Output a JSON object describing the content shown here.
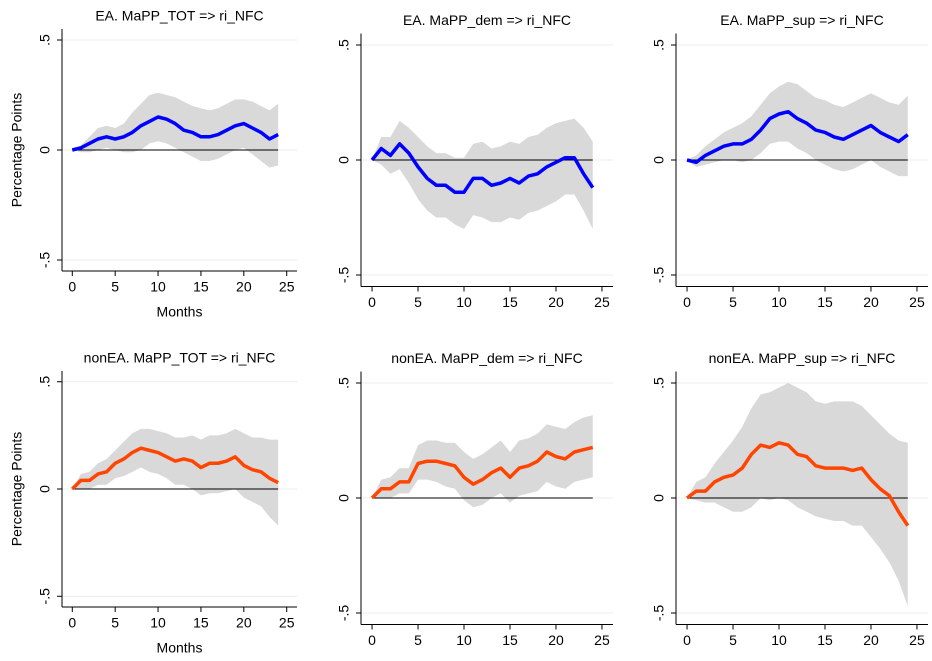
{
  "chart_data": [
    {
      "type": "line",
      "title": "EA. MaPP_TOT => ri_NFC",
      "ylabel": "Percentage Points",
      "xlabel": "Months",
      "color": "#0000ff",
      "band_color": "#d9d9d9",
      "x": [
        0,
        1,
        2,
        3,
        4,
        5,
        6,
        7,
        8,
        9,
        10,
        11,
        12,
        13,
        14,
        15,
        16,
        17,
        18,
        19,
        20,
        21,
        22,
        23,
        24
      ],
      "values": [
        0,
        0.01,
        0.03,
        0.05,
        0.06,
        0.05,
        0.06,
        0.08,
        0.11,
        0.13,
        0.15,
        0.14,
        0.12,
        0.09,
        0.08,
        0.06,
        0.06,
        0.07,
        0.09,
        0.11,
        0.12,
        0.1,
        0.08,
        0.05,
        0.07
      ],
      "lower": [
        0,
        -0.01,
        -0.01,
        0,
        0.01,
        0,
        -0.01,
        -0.01,
        0,
        0.03,
        0.04,
        0.03,
        0.01,
        -0.01,
        -0.03,
        -0.05,
        -0.05,
        -0.04,
        -0.02,
        0,
        0.01,
        -0.02,
        -0.05,
        -0.08,
        -0.07
      ],
      "upper": [
        0,
        0.02,
        0.06,
        0.1,
        0.11,
        0.1,
        0.12,
        0.17,
        0.21,
        0.25,
        0.26,
        0.25,
        0.24,
        0.22,
        0.2,
        0.19,
        0.18,
        0.19,
        0.21,
        0.23,
        0.23,
        0.22,
        0.2,
        0.18,
        0.21
      ],
      "xlim": [
        -1.2,
        26.2
      ],
      "ylim": [
        -0.55,
        0.55
      ],
      "xticks": [
        0,
        5,
        10,
        15,
        20,
        25
      ],
      "yticks": [
        {
          "value": -0.5,
          "label": "-.5"
        },
        0,
        {
          "value": 0.5,
          "label": ".5"
        }
      ],
      "grid": true
    },
    {
      "type": "line",
      "title": "EA. MaPP_dem => ri_NFC",
      "color": "#0000ff",
      "band_color": "#d9d9d9",
      "x": [
        0,
        1,
        2,
        3,
        4,
        5,
        6,
        7,
        8,
        9,
        10,
        11,
        12,
        13,
        14,
        15,
        16,
        17,
        18,
        19,
        20,
        21,
        22,
        23,
        24
      ],
      "values": [
        0,
        0.05,
        0.02,
        0.07,
        0.03,
        -0.03,
        -0.08,
        -0.11,
        -0.11,
        -0.14,
        -0.14,
        -0.08,
        -0.08,
        -0.11,
        -0.1,
        -0.08,
        -0.1,
        -0.07,
        -0.06,
        -0.03,
        -0.01,
        0.01,
        0.01,
        -0.06,
        -0.12
      ],
      "lower": [
        0,
        -0.02,
        -0.06,
        -0.04,
        -0.1,
        -0.17,
        -0.22,
        -0.25,
        -0.25,
        -0.28,
        -0.3,
        -0.24,
        -0.25,
        -0.27,
        -0.27,
        -0.25,
        -0.26,
        -0.23,
        -0.22,
        -0.2,
        -0.18,
        -0.15,
        -0.15,
        -0.22,
        -0.3
      ],
      "upper": [
        0,
        0.1,
        0.1,
        0.17,
        0.14,
        0.1,
        0.06,
        0.03,
        0.03,
        0.01,
        0.01,
        0.07,
        0.08,
        0.05,
        0.06,
        0.08,
        0.07,
        0.1,
        0.11,
        0.14,
        0.16,
        0.17,
        0.18,
        0.14,
        0.08
      ],
      "xlim": [
        -1.2,
        26.2
      ],
      "ylim": [
        -0.55,
        0.55
      ],
      "xticks": [
        0,
        5,
        10,
        15,
        20,
        25
      ],
      "yticks": [
        {
          "value": -0.5,
          "label": "-.5"
        },
        0,
        {
          "value": 0.5,
          "label": ".5"
        }
      ],
      "grid": true
    },
    {
      "type": "line",
      "title": "EA. MaPP_sup => ri_NFC",
      "color": "#0000ff",
      "band_color": "#d9d9d9",
      "x": [
        0,
        1,
        2,
        3,
        4,
        5,
        6,
        7,
        8,
        9,
        10,
        11,
        12,
        13,
        14,
        15,
        16,
        17,
        18,
        19,
        20,
        21,
        22,
        23,
        24
      ],
      "values": [
        0,
        -0.01,
        0.02,
        0.04,
        0.06,
        0.07,
        0.07,
        0.09,
        0.13,
        0.18,
        0.2,
        0.21,
        0.18,
        0.16,
        0.13,
        0.12,
        0.1,
        0.09,
        0.11,
        0.13,
        0.15,
        0.12,
        0.1,
        0.08,
        0.11
      ],
      "lower": [
        0,
        -0.03,
        -0.02,
        -0.01,
        0,
        0,
        -0.01,
        0,
        0.03,
        0.07,
        0.08,
        0.08,
        0.05,
        0.03,
        0,
        -0.02,
        -0.04,
        -0.05,
        -0.04,
        -0.02,
        0,
        -0.03,
        -0.05,
        -0.07,
        -0.07
      ],
      "upper": [
        0,
        0.02,
        0.06,
        0.09,
        0.12,
        0.14,
        0.16,
        0.19,
        0.24,
        0.29,
        0.32,
        0.34,
        0.33,
        0.3,
        0.27,
        0.26,
        0.24,
        0.23,
        0.25,
        0.27,
        0.29,
        0.27,
        0.25,
        0.24,
        0.28
      ],
      "xlim": [
        -1.2,
        26.2
      ],
      "ylim": [
        -0.55,
        0.55
      ],
      "xticks": [
        0,
        5,
        10,
        15,
        20,
        25
      ],
      "yticks": [
        {
          "value": -0.5,
          "label": "-.5"
        },
        0,
        {
          "value": 0.5,
          "label": ".5"
        }
      ],
      "grid": true
    },
    {
      "type": "line",
      "title": "nonEA. MaPP_TOT => ri_NFC",
      "ylabel": "Percentage Points",
      "xlabel": "Months",
      "color": "#ff4500",
      "band_color": "#d9d9d9",
      "x": [
        0,
        1,
        2,
        3,
        4,
        5,
        6,
        7,
        8,
        9,
        10,
        11,
        12,
        13,
        14,
        15,
        16,
        17,
        18,
        19,
        20,
        21,
        22,
        23,
        24
      ],
      "values": [
        0,
        0.04,
        0.04,
        0.07,
        0.08,
        0.12,
        0.14,
        0.17,
        0.19,
        0.18,
        0.17,
        0.15,
        0.13,
        0.14,
        0.13,
        0.1,
        0.12,
        0.12,
        0.13,
        0.15,
        0.11,
        0.09,
        0.08,
        0.05,
        0.03
      ],
      "lower": [
        0,
        0,
        0,
        0.02,
        0.02,
        0.05,
        0.06,
        0.08,
        0.1,
        0.08,
        0.07,
        0.05,
        0.02,
        0.02,
        0,
        -0.03,
        -0.02,
        -0.02,
        -0.01,
        0,
        -0.04,
        -0.06,
        -0.08,
        -0.13,
        -0.17
      ],
      "upper": [
        0,
        0.07,
        0.08,
        0.12,
        0.14,
        0.18,
        0.22,
        0.26,
        0.28,
        0.28,
        0.27,
        0.26,
        0.24,
        0.24,
        0.25,
        0.23,
        0.25,
        0.25,
        0.26,
        0.28,
        0.26,
        0.24,
        0.24,
        0.23,
        0.23
      ],
      "xlim": [
        -1.2,
        26.2
      ],
      "ylim": [
        -0.55,
        0.55
      ],
      "xticks": [
        0,
        5,
        10,
        15,
        20,
        25
      ],
      "yticks": [
        {
          "value": -0.5,
          "label": "-.5"
        },
        0,
        {
          "value": 0.5,
          "label": ".5"
        }
      ],
      "grid": true
    },
    {
      "type": "line",
      "title": "nonEA. MaPP_dem => ri_NFC",
      "color": "#ff4500",
      "band_color": "#d9d9d9",
      "x": [
        0,
        1,
        2,
        3,
        4,
        5,
        6,
        7,
        8,
        9,
        10,
        11,
        12,
        13,
        14,
        15,
        16,
        17,
        18,
        19,
        20,
        21,
        22,
        23,
        24
      ],
      "values": [
        0,
        0.04,
        0.04,
        0.07,
        0.07,
        0.15,
        0.16,
        0.16,
        0.15,
        0.14,
        0.09,
        0.06,
        0.08,
        0.11,
        0.13,
        0.09,
        0.13,
        0.14,
        0.16,
        0.2,
        0.18,
        0.17,
        0.2,
        0.21,
        0.22
      ],
      "lower": [
        0,
        0,
        0,
        0.02,
        0.02,
        0.08,
        0.08,
        0.07,
        0.05,
        0.04,
        -0.01,
        -0.04,
        -0.03,
        0,
        0.02,
        -0.02,
        0.01,
        0.02,
        0.03,
        0.07,
        0.05,
        0.04,
        0.07,
        0.08,
        0.09
      ],
      "upper": [
        0,
        0.08,
        0.09,
        0.13,
        0.13,
        0.23,
        0.25,
        0.25,
        0.24,
        0.24,
        0.2,
        0.17,
        0.19,
        0.22,
        0.25,
        0.2,
        0.25,
        0.26,
        0.28,
        0.32,
        0.31,
        0.3,
        0.33,
        0.35,
        0.36
      ],
      "xlim": [
        -1.2,
        26.2
      ],
      "ylim": [
        -0.55,
        0.55
      ],
      "xticks": [
        0,
        5,
        10,
        15,
        20,
        25
      ],
      "yticks": [
        {
          "value": -0.5,
          "label": "-.5"
        },
        0,
        {
          "value": 0.5,
          "label": ".5"
        }
      ],
      "grid": true
    },
    {
      "type": "line",
      "title": "nonEA. MaPP_sup => ri_NFC",
      "color": "#ff4500",
      "band_color": "#d9d9d9",
      "x": [
        0,
        1,
        2,
        3,
        4,
        5,
        6,
        7,
        8,
        9,
        10,
        11,
        12,
        13,
        14,
        15,
        16,
        17,
        18,
        19,
        20,
        21,
        22,
        23,
        24
      ],
      "values": [
        0,
        0.03,
        0.03,
        0.07,
        0.09,
        0.1,
        0.13,
        0.19,
        0.23,
        0.22,
        0.24,
        0.23,
        0.19,
        0.18,
        0.14,
        0.13,
        0.13,
        0.13,
        0.12,
        0.13,
        0.08,
        0.04,
        0.01,
        -0.06,
        -0.12
      ],
      "lower": [
        0,
        -0.01,
        -0.02,
        -0.02,
        -0.04,
        -0.06,
        -0.06,
        -0.04,
        0,
        -0.01,
        0,
        -0.01,
        -0.04,
        -0.06,
        -0.08,
        -0.09,
        -0.1,
        -0.1,
        -0.12,
        -0.12,
        -0.17,
        -0.22,
        -0.28,
        -0.36,
        -0.47
      ],
      "upper": [
        0,
        0.07,
        0.09,
        0.15,
        0.2,
        0.25,
        0.31,
        0.39,
        0.45,
        0.46,
        0.48,
        0.5,
        0.48,
        0.46,
        0.42,
        0.41,
        0.42,
        0.42,
        0.42,
        0.4,
        0.36,
        0.32,
        0.28,
        0.25,
        0.24
      ],
      "xlim": [
        -1.2,
        26.2
      ],
      "ylim": [
        -0.55,
        0.55
      ],
      "xticks": [
        0,
        5,
        10,
        15,
        20,
        25
      ],
      "yticks": [
        {
          "value": -0.5,
          "label": "-.5"
        },
        0,
        {
          "value": 0.5,
          "label": ".5"
        }
      ],
      "grid": true
    }
  ]
}
